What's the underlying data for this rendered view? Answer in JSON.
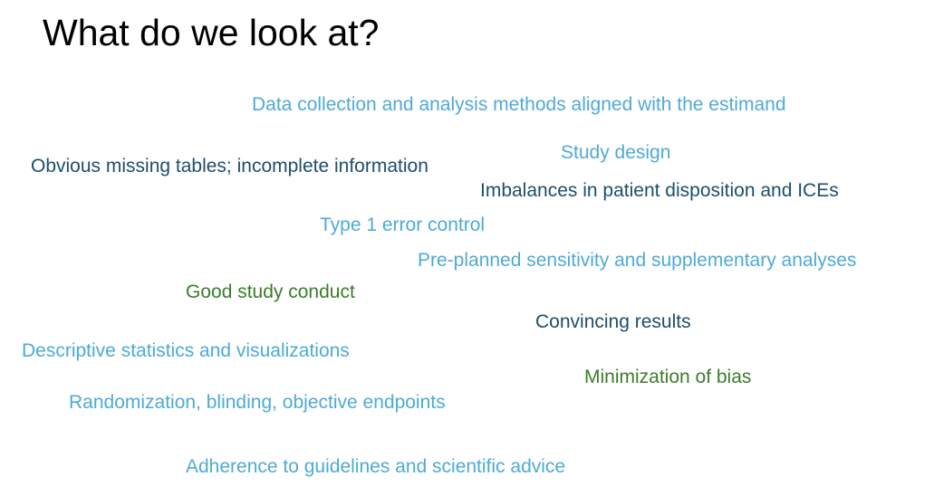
{
  "title": "What do we look at?",
  "colors": {
    "light_blue": "#4eaad6",
    "dark_blue": "#1d4e6b",
    "green": "#3a7d2a"
  },
  "phrases": {
    "data_collection": "Data collection and analysis methods aligned with the estimand",
    "study_design": "Study design",
    "missing_tables": "Obvious missing tables; incomplete information",
    "imbalances": "Imbalances in patient disposition and ICEs",
    "type1_error": "Type 1 error control",
    "sensitivity": "Pre-planned sensitivity and  supplementary analyses",
    "study_conduct": "Good study conduct",
    "convincing": "Convincing results",
    "descriptive": "Descriptive statistics and visualizations",
    "bias": "Minimization of bias",
    "randomization": "Randomization, blinding, objective endpoints",
    "adherence": "Adherence to guidelines and scientific advice"
  }
}
